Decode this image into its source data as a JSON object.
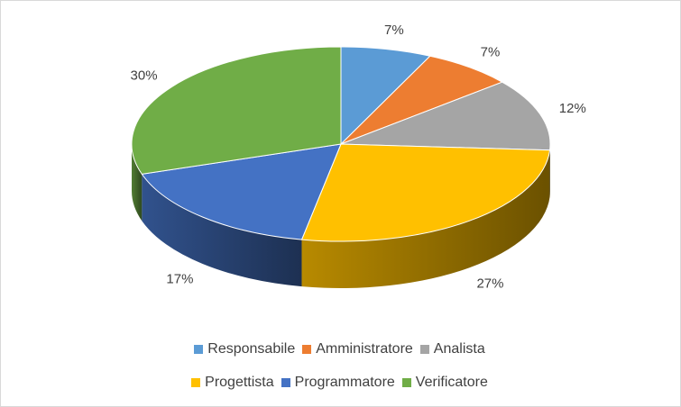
{
  "chart_data": {
    "type": "pie",
    "style": "3d",
    "title": "",
    "categories": [
      "Responsabile",
      "Amministratore",
      "Analista",
      "Progettista",
      "Programmatore",
      "Verificatore"
    ],
    "values": [
      7,
      7,
      12,
      27,
      17,
      30
    ],
    "labels": [
      "7%",
      "7%",
      "12%",
      "27%",
      "17%",
      "30%"
    ],
    "colors": [
      "#5b9bd5",
      "#ed7d31",
      "#a5a5a5",
      "#ffc000",
      "#4472c4",
      "#70ad47"
    ],
    "legend_position": "bottom",
    "legend_rows": [
      [
        0,
        1,
        2
      ],
      [
        3,
        4,
        5
      ]
    ]
  }
}
